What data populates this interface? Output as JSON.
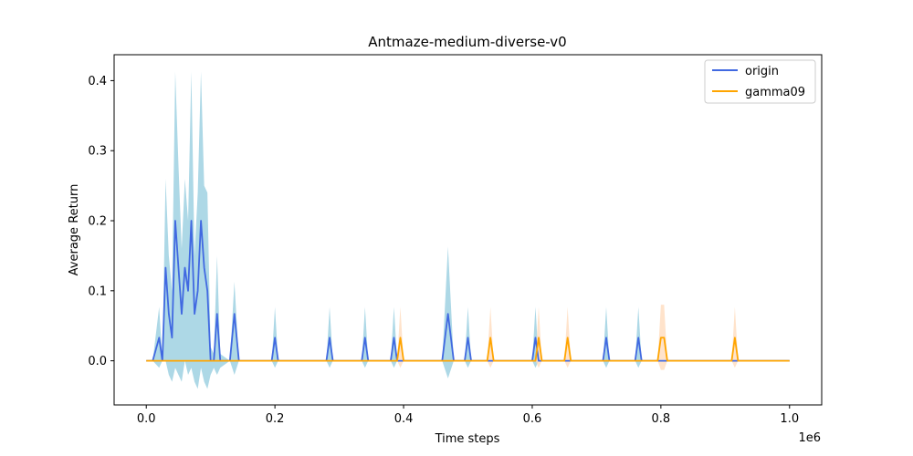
{
  "chart_data": {
    "type": "line",
    "title": "Antmaze-medium-diverse-v0",
    "xlabel": "Time steps",
    "ylabel": "Average Return",
    "x_offset_label": "1e6",
    "xlim": [
      -0.05,
      1.05
    ],
    "ylim": [
      -0.063,
      0.437
    ],
    "xticks": [
      0.0,
      0.2,
      0.4,
      0.6,
      0.8,
      1.0
    ],
    "xtick_labels": [
      "0.0",
      "0.2",
      "0.4",
      "0.6",
      "0.8",
      "1.0"
    ],
    "yticks": [
      0.0,
      0.1,
      0.2,
      0.3,
      0.4
    ],
    "ytick_labels": [
      "0.0",
      "0.1",
      "0.2",
      "0.3",
      "0.4"
    ],
    "grid": false,
    "legend_position": "top-right",
    "series": [
      {
        "name": "origin",
        "color": "#4169e1",
        "band_color": "#add8e6",
        "points": [
          [
            0.0,
            0.0
          ],
          [
            0.01,
            0.0
          ],
          [
            0.02,
            0.033
          ],
          [
            0.025,
            0.0
          ],
          [
            0.03,
            0.133
          ],
          [
            0.035,
            0.067
          ],
          [
            0.04,
            0.033
          ],
          [
            0.045,
            0.2
          ],
          [
            0.05,
            0.133
          ],
          [
            0.055,
            0.067
          ],
          [
            0.06,
            0.133
          ],
          [
            0.065,
            0.1
          ],
          [
            0.07,
            0.2
          ],
          [
            0.075,
            0.067
          ],
          [
            0.08,
            0.1
          ],
          [
            0.085,
            0.2
          ],
          [
            0.09,
            0.133
          ],
          [
            0.095,
            0.1
          ],
          [
            0.1,
            0.0
          ],
          [
            0.105,
            0.0
          ],
          [
            0.11,
            0.067
          ],
          [
            0.115,
            0.0
          ],
          [
            0.13,
            0.0
          ],
          [
            0.137,
            0.067
          ],
          [
            0.144,
            0.0
          ],
          [
            0.195,
            0.0
          ],
          [
            0.2,
            0.033
          ],
          [
            0.205,
            0.0
          ],
          [
            0.28,
            0.0
          ],
          [
            0.285,
            0.033
          ],
          [
            0.29,
            0.0
          ],
          [
            0.335,
            0.0
          ],
          [
            0.34,
            0.033
          ],
          [
            0.345,
            0.0
          ],
          [
            0.38,
            0.0
          ],
          [
            0.385,
            0.033
          ],
          [
            0.39,
            0.0
          ],
          [
            0.46,
            0.0
          ],
          [
            0.469,
            0.067
          ],
          [
            0.478,
            0.0
          ],
          [
            0.495,
            0.0
          ],
          [
            0.5,
            0.033
          ],
          [
            0.505,
            0.0
          ],
          [
            0.6,
            0.0
          ],
          [
            0.605,
            0.033
          ],
          [
            0.61,
            0.0
          ],
          [
            0.71,
            0.0
          ],
          [
            0.715,
            0.033
          ],
          [
            0.72,
            0.0
          ],
          [
            0.76,
            0.0
          ],
          [
            0.765,
            0.033
          ],
          [
            0.77,
            0.0
          ],
          [
            1.0,
            0.0
          ]
        ],
        "band": [
          [
            0.0,
            0.0,
            0.0
          ],
          [
            0.01,
            0.0,
            0.0
          ],
          [
            0.02,
            -0.01,
            0.077
          ],
          [
            0.025,
            0.0,
            0.0
          ],
          [
            0.03,
            0.0,
            0.26
          ],
          [
            0.035,
            -0.02,
            0.15
          ],
          [
            0.04,
            -0.03,
            0.1
          ],
          [
            0.045,
            -0.01,
            0.413
          ],
          [
            0.05,
            -0.02,
            0.28
          ],
          [
            0.055,
            -0.03,
            0.16
          ],
          [
            0.06,
            0.0,
            0.26
          ],
          [
            0.065,
            -0.02,
            0.2
          ],
          [
            0.07,
            -0.01,
            0.413
          ],
          [
            0.075,
            -0.03,
            0.15
          ],
          [
            0.08,
            -0.04,
            0.24
          ],
          [
            0.085,
            -0.01,
            0.413
          ],
          [
            0.09,
            -0.03,
            0.25
          ],
          [
            0.095,
            -0.04,
            0.24
          ],
          [
            0.1,
            -0.02,
            0.02
          ],
          [
            0.105,
            -0.01,
            0.01
          ],
          [
            0.11,
            -0.02,
            0.15
          ],
          [
            0.115,
            -0.01,
            0.01
          ],
          [
            0.13,
            0.0,
            0.0
          ],
          [
            0.137,
            -0.02,
            0.113
          ],
          [
            0.144,
            0.0,
            0.0
          ],
          [
            0.195,
            0.0,
            0.0
          ],
          [
            0.2,
            -0.01,
            0.077
          ],
          [
            0.205,
            0.0,
            0.0
          ],
          [
            0.28,
            0.0,
            0.0
          ],
          [
            0.285,
            -0.01,
            0.077
          ],
          [
            0.29,
            0.0,
            0.0
          ],
          [
            0.335,
            0.0,
            0.0
          ],
          [
            0.34,
            -0.01,
            0.077
          ],
          [
            0.345,
            0.0,
            0.0
          ],
          [
            0.38,
            0.0,
            0.0
          ],
          [
            0.385,
            -0.01,
            0.077
          ],
          [
            0.39,
            0.0,
            0.0
          ],
          [
            0.46,
            0.0,
            0.0
          ],
          [
            0.469,
            -0.025,
            0.163
          ],
          [
            0.478,
            0.0,
            0.0
          ],
          [
            0.495,
            0.0,
            0.0
          ],
          [
            0.5,
            -0.01,
            0.077
          ],
          [
            0.505,
            0.0,
            0.0
          ],
          [
            0.6,
            0.0,
            0.0
          ],
          [
            0.605,
            -0.01,
            0.077
          ],
          [
            0.61,
            0.0,
            0.0
          ],
          [
            0.71,
            0.0,
            0.0
          ],
          [
            0.715,
            -0.01,
            0.077
          ],
          [
            0.72,
            0.0,
            0.0
          ],
          [
            0.76,
            0.0,
            0.0
          ],
          [
            0.765,
            -0.01,
            0.077
          ],
          [
            0.77,
            0.0,
            0.0
          ],
          [
            1.0,
            0.0,
            0.0
          ]
        ]
      },
      {
        "name": "gamma09",
        "color": "#ffa500",
        "band_color": "#ffdab9",
        "points": [
          [
            0.0,
            0.0
          ],
          [
            0.39,
            0.0
          ],
          [
            0.395,
            0.033
          ],
          [
            0.4,
            0.0
          ],
          [
            0.53,
            0.0
          ],
          [
            0.535,
            0.033
          ],
          [
            0.54,
            0.0
          ],
          [
            0.605,
            0.0
          ],
          [
            0.61,
            0.033
          ],
          [
            0.615,
            0.0
          ],
          [
            0.65,
            0.0
          ],
          [
            0.655,
            0.033
          ],
          [
            0.66,
            0.0
          ],
          [
            0.795,
            0.0
          ],
          [
            0.8,
            0.033
          ],
          [
            0.805,
            0.033
          ],
          [
            0.81,
            0.0
          ],
          [
            0.91,
            0.0
          ],
          [
            0.915,
            0.033
          ],
          [
            0.92,
            0.0
          ],
          [
            1.0,
            0.0
          ]
        ],
        "band": [
          [
            0.0,
            0.0,
            0.0
          ],
          [
            0.39,
            0.0,
            0.0
          ],
          [
            0.395,
            -0.01,
            0.077
          ],
          [
            0.4,
            0.0,
            0.0
          ],
          [
            0.53,
            0.0,
            0.0
          ],
          [
            0.535,
            -0.01,
            0.077
          ],
          [
            0.54,
            0.0,
            0.0
          ],
          [
            0.605,
            0.0,
            0.0
          ],
          [
            0.61,
            -0.01,
            0.077
          ],
          [
            0.615,
            0.0,
            0.0
          ],
          [
            0.65,
            0.0,
            0.0
          ],
          [
            0.655,
            -0.01,
            0.077
          ],
          [
            0.66,
            0.0,
            0.0
          ],
          [
            0.795,
            0.0,
            0.0
          ],
          [
            0.8,
            -0.013,
            0.08
          ],
          [
            0.805,
            -0.013,
            0.08
          ],
          [
            0.81,
            0.0,
            0.0
          ],
          [
            0.91,
            0.0,
            0.0
          ],
          [
            0.915,
            -0.01,
            0.077
          ],
          [
            0.92,
            0.0,
            0.0
          ],
          [
            1.0,
            0.0,
            0.0
          ]
        ]
      }
    ]
  }
}
